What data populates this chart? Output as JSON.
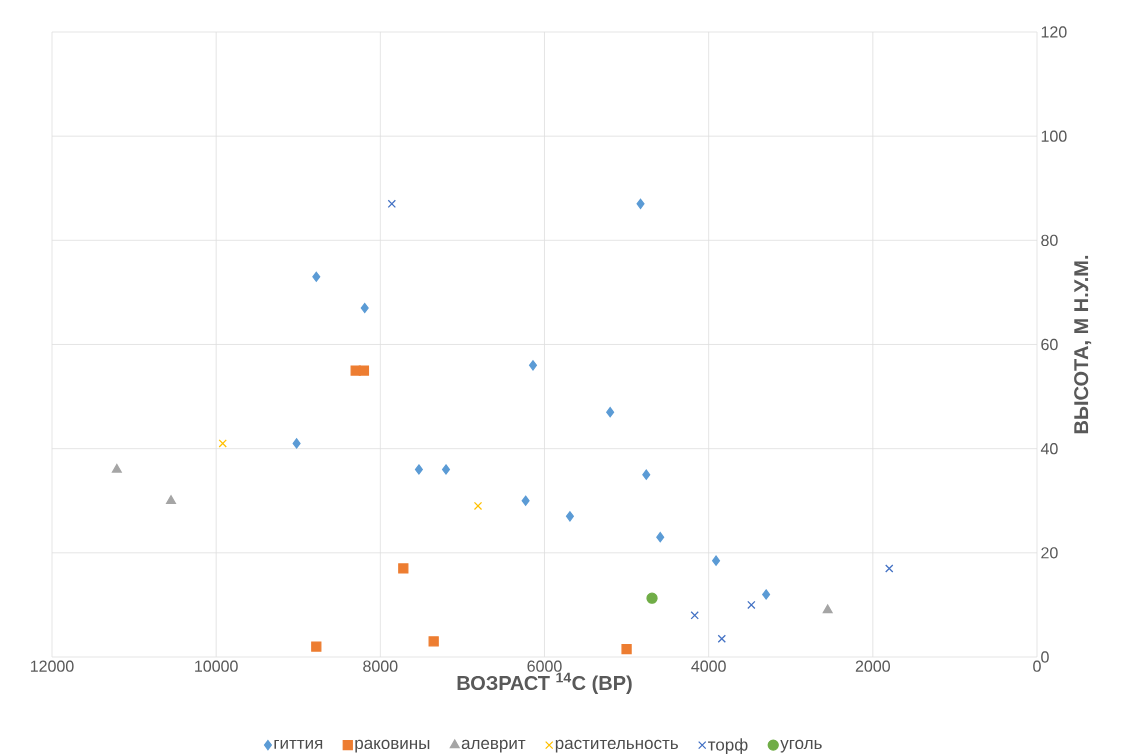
{
  "chart_data": {
    "type": "scatter",
    "xlabel": "ВОЗРАСТ $^{14}$C (BP)",
    "ylabel": "ВЫСОТА, М Н.У.М.",
    "xlim": [
      12000,
      0
    ],
    "xticks": [
      0,
      2000,
      4000,
      6000,
      8000,
      10000,
      12000
    ],
    "ylim": [
      0,
      120
    ],
    "yticks": [
      0,
      20,
      40,
      60,
      80,
      100,
      120
    ],
    "grid": true,
    "legend": "bottom",
    "series": [
      {
        "name": "гиттия",
        "color": "#5b9bd5",
        "marker": "diamond",
        "x": [
          8780,
          8190,
          9020,
          7530,
          7200,
          6230,
          6140,
          5690,
          5200,
          4830,
          4760,
          4590,
          3910,
          3300
        ],
        "values": [
          73,
          67,
          41,
          36,
          36,
          30,
          56,
          27,
          47,
          87,
          35,
          23,
          18.5,
          12
        ]
      },
      {
        "name": "раковины",
        "color": "#ed7d31",
        "marker": "square",
        "x": [
          8300,
          8200,
          7720,
          8780,
          7350,
          5000
        ],
        "values": [
          55,
          55,
          17,
          2,
          3,
          1.5
        ]
      },
      {
        "name": "алеврит",
        "color": "#a5a5a5",
        "marker": "triangle",
        "x": [
          11210,
          10550,
          2550
        ],
        "values": [
          36,
          30,
          9
        ]
      },
      {
        "name": "растительность",
        "color": "#ffc000",
        "marker": "cross",
        "x": [
          9920,
          6810
        ],
        "values": [
          41,
          29
        ]
      },
      {
        "name": "торф",
        "color": "#4472c4",
        "marker": "cross",
        "x": [
          7860,
          4170,
          3840,
          3480,
          1800
        ],
        "values": [
          87,
          8,
          3.5,
          10,
          17
        ]
      },
      {
        "name": "уголь",
        "color": "#70ad47",
        "marker": "circle",
        "x": [
          4690
        ],
        "values": [
          11.3
        ]
      }
    ]
  }
}
